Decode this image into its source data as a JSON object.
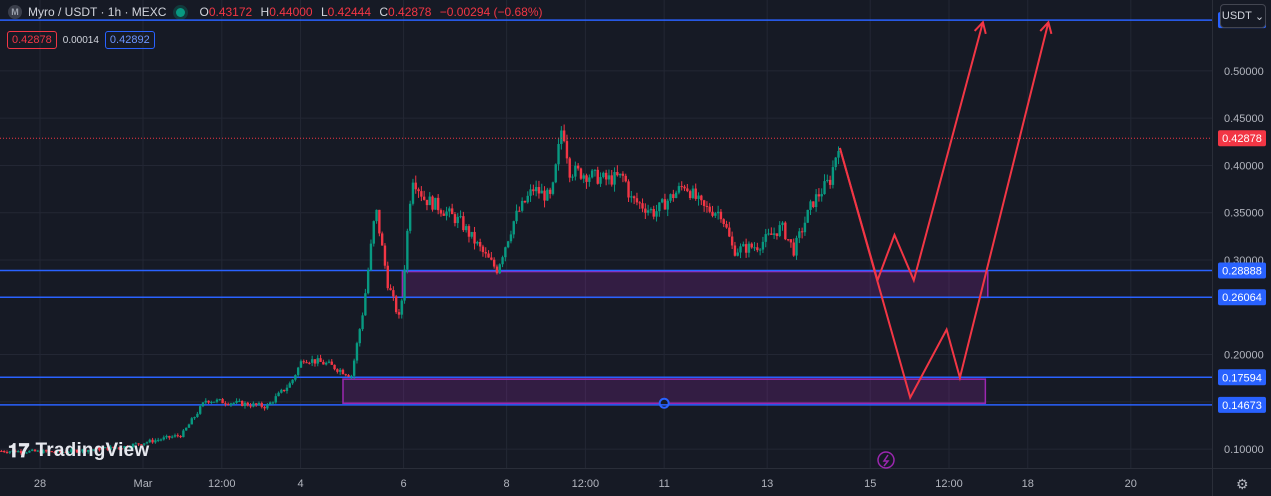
{
  "header": {
    "symbol": "Myro / USDT · 1h · MEXC",
    "symbol_icon": "M",
    "open_label": "O",
    "open": "0.43172",
    "high_label": "H",
    "high": "0.44000",
    "low_label": "L",
    "low": "0.42444",
    "close_label": "C",
    "close": "0.42878",
    "change": "−0.00294 (−0.68%)"
  },
  "quote": {
    "sell": "0.42878",
    "spread": "0.00014",
    "buy": "0.42892"
  },
  "currency_button": "USDT",
  "watermark": "TradingView",
  "colors": {
    "background": "#161a25",
    "up": "#089981",
    "down": "#f23645",
    "level": "#2962ff",
    "zone": "#9c27b0",
    "arrow": "#f23645"
  },
  "chart_data": {
    "type": "candlestick",
    "y_scale": "linear",
    "ylim": [
      0.08,
      0.575
    ],
    "current_price": 0.42878,
    "price_ticks": [
      "0.50000",
      "0.45000",
      "0.40000",
      "0.35000",
      "0.30000",
      "0.20000",
      "0.15000",
      "0.10000"
    ],
    "price_tick_values": [
      0.5,
      0.45,
      0.4,
      0.35,
      0.3,
      0.2,
      0.15,
      0.1
    ],
    "time_ticks": [
      "28",
      "Mar",
      "12:00",
      "4",
      "6",
      "8",
      "12:00",
      "11",
      "13",
      "15",
      "12:00",
      "18",
      "20"
    ],
    "time_tick_positions": [
      0.033,
      0.118,
      0.183,
      0.248,
      0.333,
      0.418,
      0.483,
      0.548,
      0.633,
      0.718,
      0.783,
      0.848,
      0.933
    ],
    "levels": [
      {
        "label": "0.55372",
        "value": 0.55372
      },
      {
        "label": "0.28888",
        "value": 0.28888
      },
      {
        "label": "0.26064",
        "value": 0.26064
      },
      {
        "label": "0.17594",
        "value": 0.17594
      },
      {
        "label": "0.14673",
        "value": 0.14673
      }
    ],
    "zones": [
      {
        "top": 0.2878,
        "bottom": 0.2605,
        "t_start": 0.332,
        "t_end": 0.815
      },
      {
        "top": 0.174,
        "bottom": 0.1485,
        "t_start": 0.283,
        "t_end": 0.813
      }
    ],
    "projection_paths": [
      [
        [
          0.693,
          0.4185
        ],
        [
          0.724,
          0.2785
        ],
        [
          0.738,
          0.3265
        ],
        [
          0.754,
          0.2785
        ],
        [
          0.811,
          0.5515
        ]
      ],
      [
        [
          0.693,
          0.4185
        ],
        [
          0.751,
          0.1545
        ],
        [
          0.781,
          0.2265
        ],
        [
          0.792,
          0.1755
        ],
        [
          0.865,
          0.5515
        ]
      ]
    ],
    "price_path": [
      [
        0.0,
        0.098
      ],
      [
        0.05,
        0.097
      ],
      [
        0.1,
        0.102
      ],
      [
        0.15,
        0.115
      ],
      [
        0.17,
        0.152
      ],
      [
        0.2,
        0.148
      ],
      [
        0.22,
        0.145
      ],
      [
        0.24,
        0.17
      ],
      [
        0.25,
        0.196
      ],
      [
        0.27,
        0.19
      ],
      [
        0.29,
        0.178
      ],
      [
        0.3,
        0.25
      ],
      [
        0.31,
        0.355
      ],
      [
        0.32,
        0.275
      ],
      [
        0.33,
        0.235
      ],
      [
        0.34,
        0.39
      ],
      [
        0.35,
        0.365
      ],
      [
        0.36,
        0.358
      ],
      [
        0.38,
        0.34
      ],
      [
        0.4,
        0.305
      ],
      [
        0.41,
        0.29
      ],
      [
        0.425,
        0.345
      ],
      [
        0.44,
        0.375
      ],
      [
        0.455,
        0.365
      ],
      [
        0.464,
        0.445
      ],
      [
        0.47,
        0.395
      ],
      [
        0.5,
        0.385
      ],
      [
        0.515,
        0.388
      ],
      [
        0.52,
        0.365
      ],
      [
        0.54,
        0.35
      ],
      [
        0.565,
        0.38
      ],
      [
        0.58,
        0.355
      ],
      [
        0.595,
        0.35
      ],
      [
        0.605,
        0.31
      ],
      [
        0.625,
        0.315
      ],
      [
        0.645,
        0.335
      ],
      [
        0.655,
        0.31
      ],
      [
        0.67,
        0.36
      ],
      [
        0.685,
        0.385
      ],
      [
        0.693,
        0.43
      ]
    ]
  }
}
